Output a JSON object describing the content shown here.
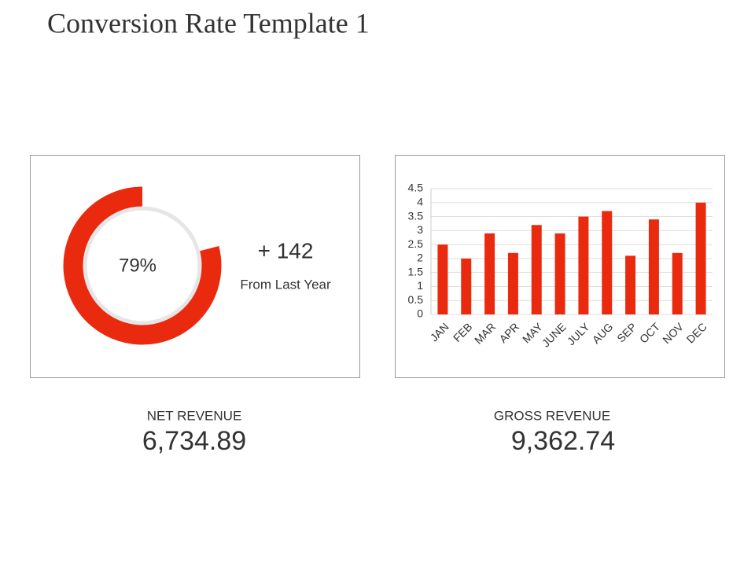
{
  "title": "Conversion Rate Template 1",
  "chart_data": [
    {
      "type": "donut",
      "values": [
        79
      ],
      "value_labels": [
        "79%"
      ],
      "color": "#ea2a0f",
      "track_color": "#e6e6e6",
      "change": "+ 142",
      "change_label": "From Last Year"
    },
    {
      "type": "bar",
      "categories": [
        "JAN",
        "FEB",
        "MAR",
        "APR",
        "MAY",
        "JUNE",
        "JULY",
        "AUG",
        "SEP",
        "OCT",
        "NOV",
        "DEC"
      ],
      "values": [
        2.5,
        2,
        2.9,
        2.2,
        3.2,
        2.9,
        3.5,
        3.7,
        2.1,
        3.4,
        2.2,
        4
      ],
      "color": "#ea2a0f",
      "ylim": [
        0,
        4.5
      ],
      "yticks": [
        0,
        0.5,
        1,
        1.5,
        2,
        2.5,
        3,
        3.5,
        4,
        4.5
      ],
      "grid": true
    }
  ],
  "metrics": [
    {
      "label": "NET REVENUE",
      "value": "6,734.89"
    },
    {
      "label": "GROSS REVENUE",
      "value": "9,362.74"
    }
  ]
}
